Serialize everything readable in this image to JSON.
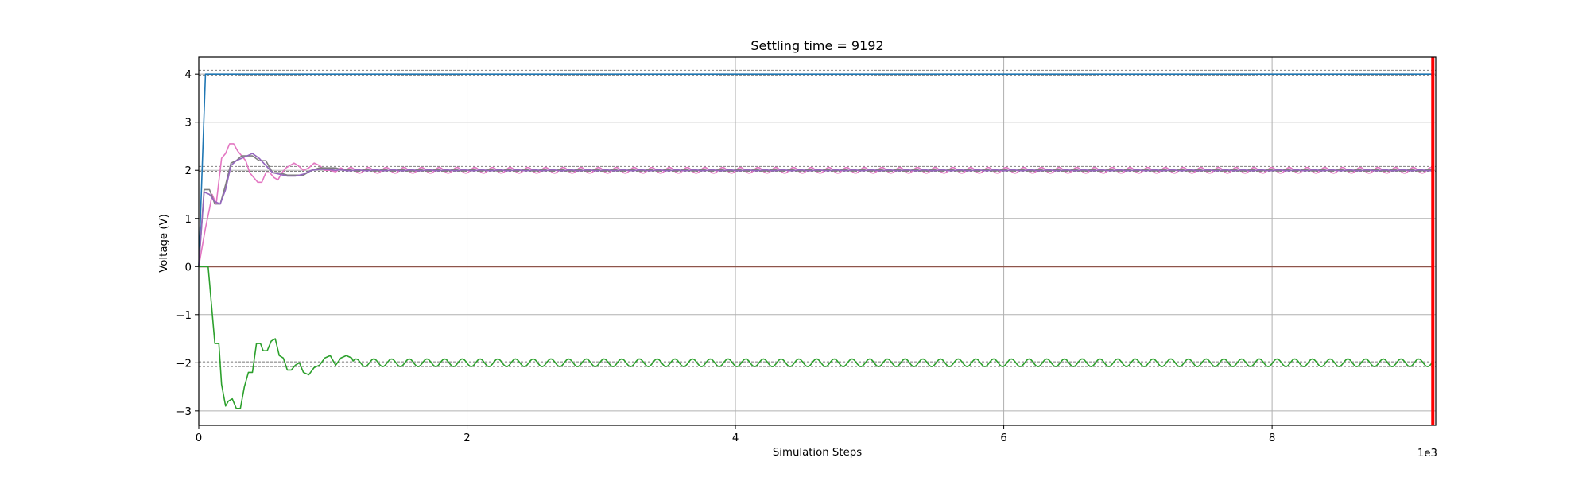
{
  "chart_data": {
    "type": "line",
    "title": "Settling time = 9192",
    "xlabel": "Simulation Steps",
    "ylabel": "Voltage (V)",
    "x_offset_text": "1e3",
    "xlim": [
      0,
      9.22
    ],
    "ylim": [
      -3.3,
      4.35
    ],
    "grid": true,
    "x_ticks": [
      0,
      2,
      4,
      6,
      8
    ],
    "x_tick_labels": [
      "0",
      "2",
      "4",
      "6",
      "8"
    ],
    "y_ticks": [
      -3,
      -2,
      -1,
      0,
      1,
      2,
      3,
      4
    ],
    "y_tick_labels": [
      "−3",
      "−2",
      "−1",
      "0",
      "1",
      "2",
      "3",
      "4"
    ],
    "settling_marker": {
      "x": 9.192,
      "color": "#ff0000"
    },
    "tolerance_bands": [
      {
        "center": 4,
        "lower": 3.98,
        "upper": 4.08,
        "color": "#808080"
      },
      {
        "center": 2,
        "lower": 1.98,
        "upper": 2.08,
        "color": "#808080"
      },
      {
        "center": -2,
        "lower": -2.08,
        "upper": -1.98,
        "color": "#808080"
      }
    ],
    "series": [
      {
        "color": "#1f77b4",
        "x": [
          0,
          0.05,
          0.1,
          9.2
        ],
        "y": [
          0,
          4,
          4,
          4
        ]
      },
      {
        "color": "#d62728",
        "x": [
          0,
          9.2
        ],
        "y": [
          0,
          0
        ]
      },
      {
        "color": "#8c564b",
        "x": [
          0,
          9.2
        ],
        "y": [
          0,
          0
        ]
      },
      {
        "color": "#e377c2",
        "x": [
          0,
          0.05,
          0.08,
          0.1,
          0.13,
          0.17,
          0.2,
          0.23,
          0.26,
          0.29,
          0.32,
          0.35,
          0.38,
          0.41,
          0.44,
          0.47,
          0.5,
          0.53,
          0.56,
          0.59,
          0.62,
          0.65,
          0.68,
          0.71,
          0.74,
          0.78,
          0.82,
          0.86,
          0.9,
          0.94,
          0.98,
          1.02,
          1.06,
          1.1
        ],
        "y": [
          0,
          0.8,
          1.2,
          1.5,
          1.3,
          2.25,
          2.35,
          2.55,
          2.55,
          2.4,
          2.3,
          2.2,
          1.95,
          1.85,
          1.75,
          1.75,
          1.95,
          1.95,
          1.85,
          1.8,
          1.95,
          2.05,
          2.1,
          2.15,
          2.1,
          2.0,
          2.05,
          2.15,
          2.1,
          2.0,
          2.0,
          1.97,
          2.05,
          2.0
        ],
        "osc": {
          "from": 1.1,
          "to": 9.2,
          "center": 2.0,
          "amp": 0.06,
          "period": 0.132
        }
      },
      {
        "color": "#7f7f7f",
        "x": [
          0,
          0.04,
          0.08,
          0.12,
          0.16,
          0.2,
          0.24,
          0.28,
          0.32,
          0.36,
          0.4,
          0.45,
          0.5,
          0.55,
          0.6,
          0.66,
          0.72,
          0.78,
          0.84,
          0.9,
          0.96,
          1.02,
          1.08
        ],
        "y": [
          0,
          1.6,
          1.6,
          1.3,
          1.3,
          1.7,
          2.15,
          2.2,
          2.3,
          2.3,
          2.3,
          2.2,
          2.2,
          1.95,
          1.95,
          1.9,
          1.9,
          1.9,
          2.0,
          2.05,
          2.05,
          2.05,
          2.0
        ],
        "osc": {
          "from": 1.08,
          "to": 9.2,
          "center": 2.0,
          "amp": 0.015,
          "period": 0.132
        }
      },
      {
        "color": "#9467bd",
        "x": [
          0,
          0.04,
          0.08,
          0.12,
          0.16,
          0.2,
          0.24,
          0.28,
          0.32,
          0.36,
          0.4,
          0.45,
          0.5,
          0.55,
          0.6,
          0.66,
          0.72,
          0.78,
          0.84,
          0.9,
          0.96,
          1.02
        ],
        "y": [
          0,
          1.55,
          1.5,
          1.35,
          1.3,
          1.6,
          2.1,
          2.2,
          2.25,
          2.3,
          2.35,
          2.25,
          2.1,
          1.95,
          1.92,
          1.88,
          1.88,
          1.92,
          2.0,
          2.02,
          2.02,
          2.0
        ],
        "osc": {
          "from": 1.02,
          "to": 9.2,
          "center": 2.0,
          "amp": 0.01,
          "period": 0.132
        }
      },
      {
        "color": "#2ca02c",
        "x": [
          0,
          0.07,
          0.12,
          0.15,
          0.17,
          0.2,
          0.22,
          0.25,
          0.28,
          0.31,
          0.34,
          0.37,
          0.4,
          0.43,
          0.46,
          0.48,
          0.51,
          0.54,
          0.57,
          0.6,
          0.63,
          0.66,
          0.69,
          0.72,
          0.75,
          0.78,
          0.82,
          0.86,
          0.9,
          0.94,
          0.98,
          1.02,
          1.06,
          1.1,
          1.14
        ],
        "y": [
          0,
          0,
          -1.6,
          -1.6,
          -2.45,
          -2.9,
          -2.8,
          -2.75,
          -2.95,
          -2.95,
          -2.5,
          -2.2,
          -2.2,
          -1.6,
          -1.6,
          -1.75,
          -1.75,
          -1.55,
          -1.5,
          -1.85,
          -1.9,
          -2.15,
          -2.15,
          -2.05,
          -2.0,
          -2.2,
          -2.25,
          -2.1,
          -2.05,
          -1.9,
          -1.85,
          -2.05,
          -1.9,
          -1.85,
          -1.9
        ],
        "osc": {
          "from": 1.14,
          "to": 9.2,
          "center": -2.0,
          "amp": 0.08,
          "period": 0.132
        }
      }
    ]
  }
}
